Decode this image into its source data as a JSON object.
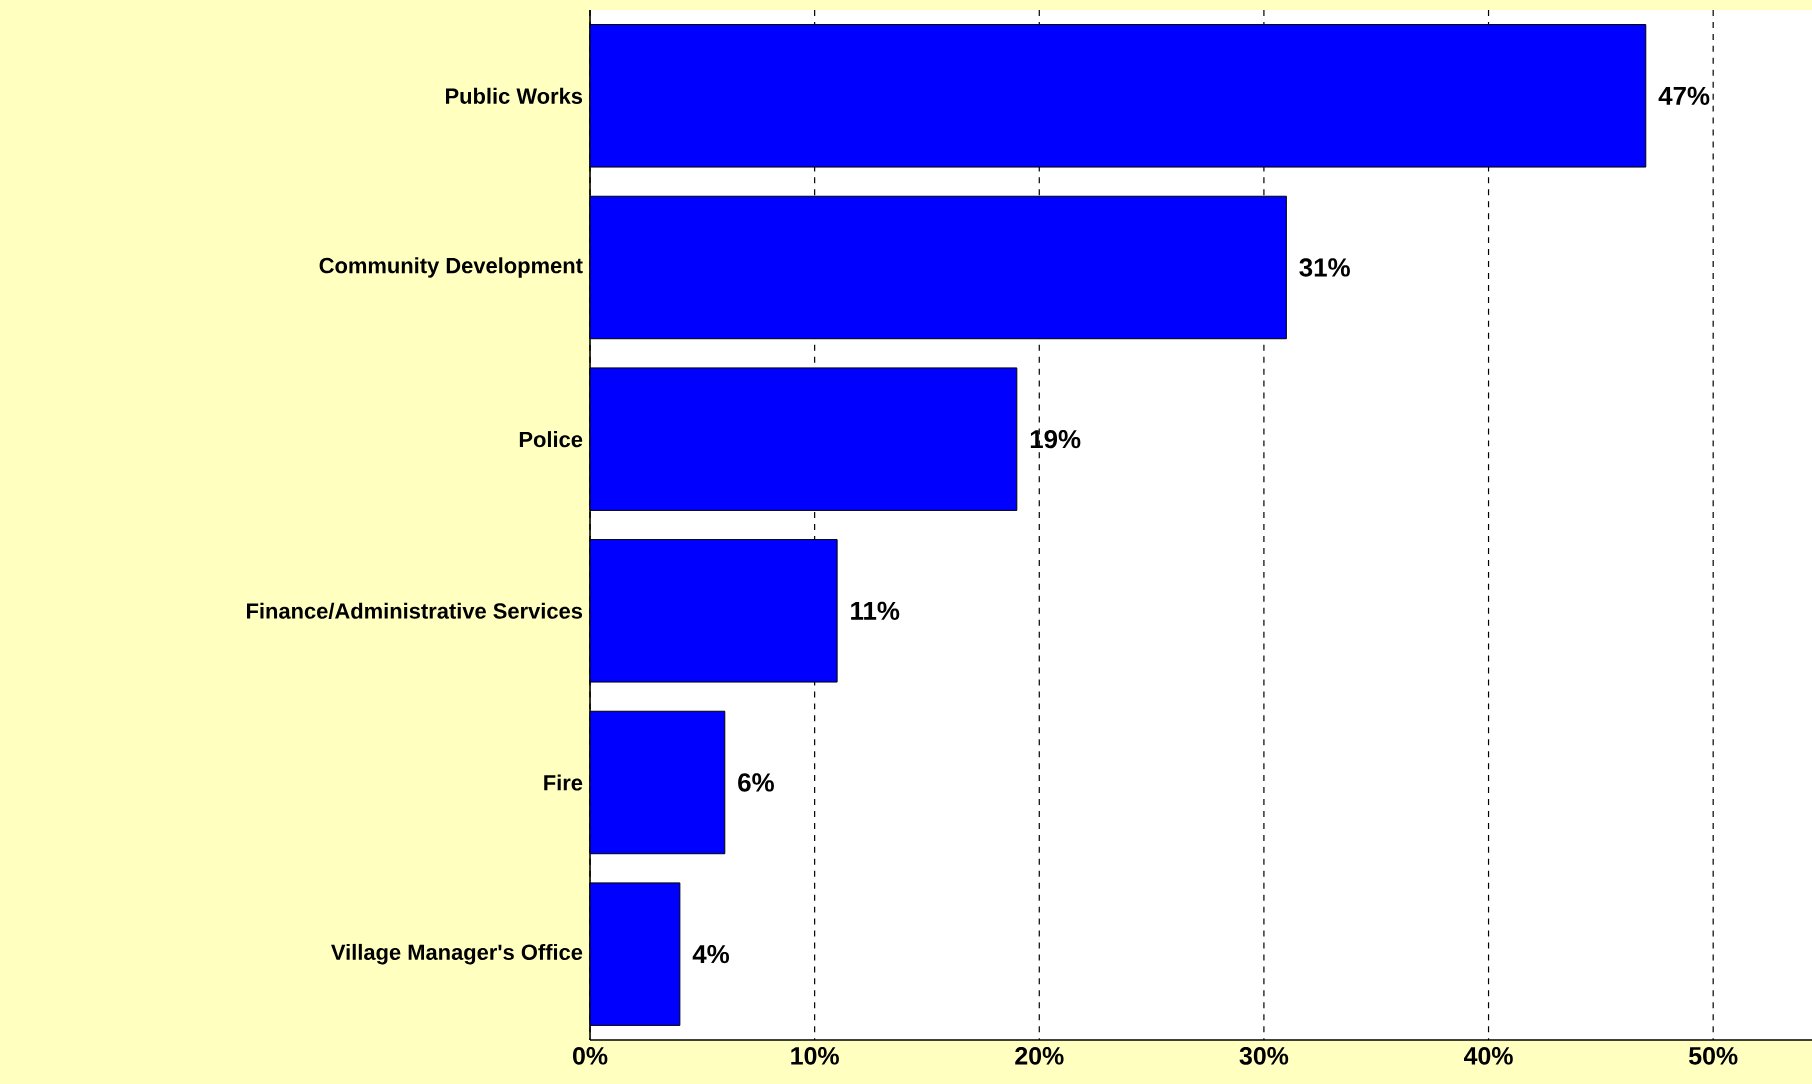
{
  "chart_data": {
    "type": "bar",
    "orientation": "horizontal",
    "categories": [
      "Public Works",
      "Community Development",
      "Police",
      "Finance/Administrative Services",
      "Fire",
      "Village Manager's Office"
    ],
    "values": [
      47,
      31,
      19,
      11,
      6,
      4
    ],
    "value_labels": [
      "47%",
      "31%",
      "19%",
      "11%",
      "6%",
      "4%"
    ],
    "color": "#0000ff",
    "xlim": [
      0,
      54.4
    ],
    "xticks": [
      {
        "value": 0,
        "label": "0%"
      },
      {
        "value": 10,
        "label": "10%"
      },
      {
        "value": 20,
        "label": "20%"
      },
      {
        "value": 30,
        "label": "30%"
      },
      {
        "value": 40,
        "label": "40%"
      },
      {
        "value": 50,
        "label": "50%"
      }
    ],
    "grid": "x"
  }
}
